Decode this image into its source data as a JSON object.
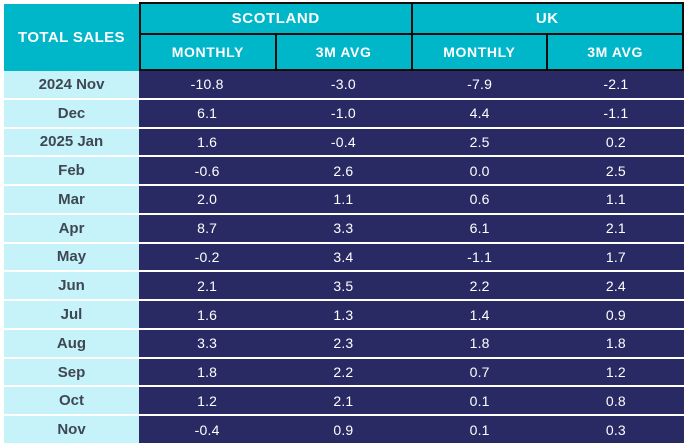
{
  "table": {
    "title": "TOTAL SALES",
    "groups": [
      {
        "label": "SCOTLAND"
      },
      {
        "label": "UK"
      }
    ],
    "sub_headers": [
      "MONTHLY",
      "3M AVG",
      "MONTHLY",
      "3M AVG"
    ],
    "rows": [
      {
        "label": "2024 Nov",
        "cells": [
          "-10.8",
          "-3.0",
          "-7.9",
          "-2.1"
        ]
      },
      {
        "label": "Dec",
        "cells": [
          "6.1",
          "-1.0",
          "4.4",
          "-1.1"
        ]
      },
      {
        "label": "2025 Jan",
        "cells": [
          "1.6",
          "-0.4",
          "2.5",
          "0.2"
        ]
      },
      {
        "label": "Feb",
        "cells": [
          "-0.6",
          "2.6",
          "0.0",
          "2.5"
        ]
      },
      {
        "label": "Mar",
        "cells": [
          "2.0",
          "1.1",
          "0.6",
          "1.1"
        ]
      },
      {
        "label": "Apr",
        "cells": [
          "8.7",
          "3.3",
          "6.1",
          "2.1"
        ]
      },
      {
        "label": "May",
        "cells": [
          "-0.2",
          "3.4",
          "-1.1",
          "1.7"
        ]
      },
      {
        "label": "Jun",
        "cells": [
          "2.1",
          "3.5",
          "2.2",
          "2.4"
        ]
      },
      {
        "label": "Jul",
        "cells": [
          "1.6",
          "1.3",
          "1.4",
          "0.9"
        ]
      },
      {
        "label": "Aug",
        "cells": [
          "3.3",
          "2.3",
          "1.8",
          "1.8"
        ]
      },
      {
        "label": "Sep",
        "cells": [
          "1.8",
          "2.2",
          "0.7",
          "1.2"
        ]
      },
      {
        "label": "Oct",
        "cells": [
          "1.2",
          "2.1",
          "0.1",
          "0.8"
        ]
      },
      {
        "label": "Nov",
        "cells": [
          "-0.4",
          "0.9",
          "0.1",
          "0.3"
        ]
      }
    ]
  },
  "colors": {
    "header_teal": "#00b6c9",
    "row_label_bg": "#c6f2fa",
    "data_bg": "#292a64",
    "grid_border": "#0d0d0d",
    "row_label_text": "#3f4852",
    "value_text": "#ffffff"
  },
  "chart_data": {
    "type": "table",
    "title": "TOTAL SALES",
    "column_groups": [
      "SCOTLAND",
      "UK"
    ],
    "columns": [
      "SCOTLAND MONTHLY",
      "SCOTLAND 3M AVG",
      "UK MONTHLY",
      "UK 3M AVG"
    ],
    "row_labels": [
      "2024 Nov",
      "Dec",
      "2025 Jan",
      "Feb",
      "Mar",
      "Apr",
      "May",
      "Jun",
      "Jul",
      "Aug",
      "Sep",
      "Oct",
      "Nov"
    ],
    "series": [
      {
        "name": "Scotland Monthly",
        "values": [
          -10.8,
          6.1,
          1.6,
          -0.6,
          2.0,
          8.7,
          -0.2,
          2.1,
          1.6,
          3.3,
          1.8,
          1.2,
          -0.4
        ]
      },
      {
        "name": "Scotland 3M Avg",
        "values": [
          -3.0,
          -1.0,
          -0.4,
          2.6,
          1.1,
          3.3,
          3.4,
          3.5,
          1.3,
          2.3,
          2.2,
          2.1,
          0.9
        ]
      },
      {
        "name": "UK Monthly",
        "values": [
          -7.9,
          4.4,
          2.5,
          0.0,
          0.6,
          6.1,
          -1.1,
          2.2,
          1.4,
          1.8,
          0.7,
          0.1,
          0.1
        ]
      },
      {
        "name": "UK 3M Avg",
        "values": [
          -2.1,
          -1.1,
          0.2,
          2.5,
          1.1,
          2.1,
          1.7,
          2.4,
          0.9,
          1.8,
          1.2,
          0.8,
          0.3
        ]
      }
    ]
  }
}
